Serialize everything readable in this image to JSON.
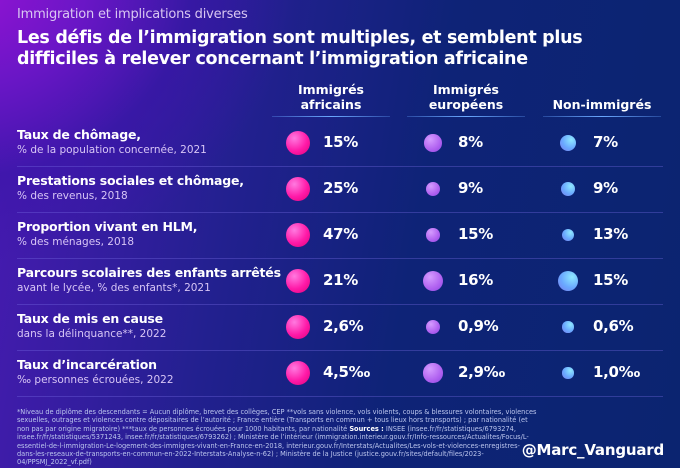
{
  "header": {
    "kicker": "Immigration et implications diverses",
    "title": "Les défis de l’immigration sont multiples, et semblent plus difficiles à relever concernant l’immigration africaine"
  },
  "colors": {
    "african": "#ff1aa8",
    "european": "#b061f0",
    "non_immigrant": "#6aa8ff"
  },
  "chart_data": {
    "type": "table",
    "title": "Les défis de l’immigration sont multiples, et semblent plus difficiles à relever concernant l’immigration africaine",
    "columns": [
      "Immigrés africains",
      "Immigrés européens",
      "Non-immigrés"
    ],
    "column_lines": [
      [
        "Immigrés",
        "africains"
      ],
      [
        "Immigrés",
        "européens"
      ],
      [
        "Non-immigrés"
      ]
    ],
    "rows": [
      {
        "label": "Taux de chômage,",
        "sublabel": "% de la population concernée, 2021",
        "values": [
          15,
          8,
          7
        ],
        "labels": [
          "15%",
          "8%",
          "7%"
        ]
      },
      {
        "label": "Prestations sociales et chômage,",
        "sublabel": "% des revenus, 2018",
        "values": [
          25,
          9,
          9
        ],
        "labels": [
          "25%",
          "9%",
          "9%"
        ]
      },
      {
        "label": "Proportion vivant en HLM,",
        "sublabel": "% des ménages, 2018",
        "values": [
          47,
          15,
          13
        ],
        "labels": [
          "47%",
          "15%",
          "13%"
        ]
      },
      {
        "label": "Parcours scolaires des enfants arrêtés",
        "sublabel": "avant le lycée, % des enfants*, 2021",
        "values": [
          21,
          16,
          15
        ],
        "labels": [
          "21%",
          "16%",
          "15%"
        ]
      },
      {
        "label": "Taux de mis en cause",
        "sublabel": "dans la délinquance**, 2022",
        "values": [
          2.6,
          0.9,
          0.6
        ],
        "labels": [
          "2,6%",
          "0,9%",
          "0,6%"
        ]
      },
      {
        "label": "Taux d’incarcération",
        "sublabel": "‰ personnes écrouées, 2022",
        "values": [
          4.5,
          2.9,
          1.0
        ],
        "labels": [
          "4,5‰",
          "2,9‰",
          "1,0‰"
        ]
      }
    ]
  },
  "footer": {
    "note": "*Niveau de diplôme des descendants = Aucun diplôme, brevet des collèges, CEP    **vols sans violence, vols violents, coups & blessures volontaires, violences sexuelles, outrages et violences contre dépositaires de l’autorité ; France entière (Transports en commun + tous lieux hors transports) ; par nationalité (et non pas par origine migratoire) ***taux de personnes écrouées pour 1000 habitants, par nationalité    ",
    "sources_label": "Sources :",
    "sources": " INSEE (insee.fr/fr/statistiques/6793274, insee.fr/fr/statistiques/5371243, insee.fr/fr/statistiques/6793262) ; Ministère de l’intérieur (immigration.interieur.gouv.fr/Info-ressources/Actualites/Focus/L-essentiel-de-l-immigration-Le-logement-des-immigres-vivant-en-France-en-2018, interieur.gouv.fr/Interstats/Actualites/Les-vols-et-violences-enregistres-dans-les-reseaux-de-transports-en-commun-en-2022-Interstats-Analyse-n-62) ; Ministère de la Justice (justice.gouv.fr/sites/default/files/2023-04/PPSMJ_2022_vf.pdf)",
    "handle": "@Marc_Vanguard"
  }
}
